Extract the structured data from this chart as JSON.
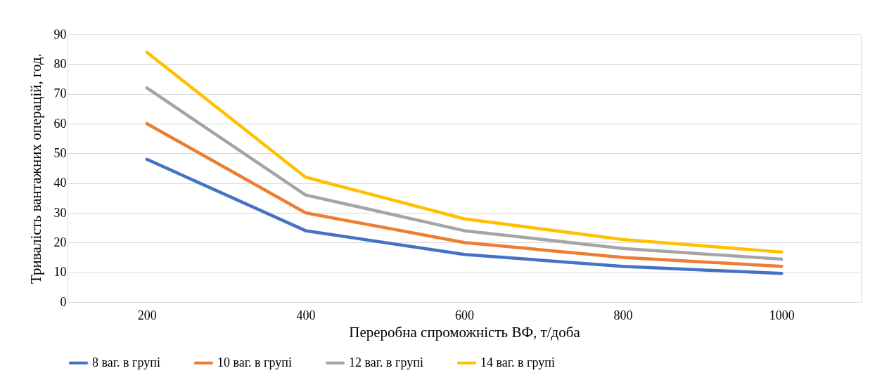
{
  "chart_data": {
    "type": "line",
    "xlabel": "Переробна спроможність ВФ, т/доба",
    "ylabel": "Тривалість вантажних операцій, год.",
    "categories": [
      "200",
      "400",
      "600",
      "800",
      "1000"
    ],
    "series": [
      {
        "name": "8 ваг. в групі",
        "color": "#4472c4",
        "values": [
          48,
          24,
          16,
          12,
          9.6
        ]
      },
      {
        "name": "10 ваг. в групі",
        "color": "#ed7d31",
        "values": [
          60,
          30,
          20,
          15,
          12
        ]
      },
      {
        "name": "12 ваг. в групі",
        "color": "#a5a5a5",
        "values": [
          72,
          36,
          24,
          18,
          14.4
        ]
      },
      {
        "name": "14 ваг. в групі",
        "color": "#ffc000",
        "values": [
          84,
          42,
          28,
          21,
          16.8
        ]
      }
    ],
    "ylim": [
      0,
      90
    ],
    "yticks": [
      0,
      10,
      20,
      30,
      40,
      50,
      60,
      70,
      80,
      90
    ],
    "grid": "y",
    "legend": "bottom",
    "marker": "none",
    "line_style": "solid"
  }
}
